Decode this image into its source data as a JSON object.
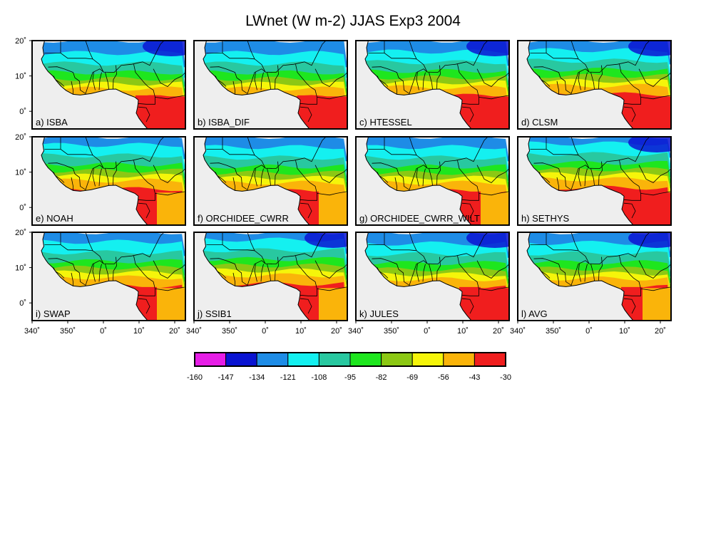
{
  "title": "LWnet (W m-2) JJAS Exp3 2004",
  "panels": [
    {
      "label": "a) ISBA"
    },
    {
      "label": "b) ISBA_DIF"
    },
    {
      "label": "c) HTESSEL"
    },
    {
      "label": "d) CLSM"
    },
    {
      "label": "e) NOAH"
    },
    {
      "label": "f) ORCHIDEE_CWRR"
    },
    {
      "label": "g) ORCHIDEE_CWRR_WILT"
    },
    {
      "label": "h) SETHYS"
    },
    {
      "label": "i) SWAP"
    },
    {
      "label": "j) SSIB1"
    },
    {
      "label": "k) JULES"
    },
    {
      "label": "l) AVG"
    }
  ],
  "lat_ticks": [
    "20˚",
    "10˚",
    "0˚"
  ],
  "lon_ticks": [
    "340˚",
    "350˚",
    "0˚",
    "10˚",
    "20˚"
  ],
  "colorbar": {
    "labels": [
      "-160",
      "-147",
      "-134",
      "-121",
      "-108",
      "-95",
      "-82",
      "-69",
      "-56",
      "-43",
      "-30"
    ],
    "colors": [
      "#e61ee6",
      "#0a14d2",
      "#1e8ce6",
      "#14f0f0",
      "#28c8a0",
      "#1ee61e",
      "#8cc814",
      "#f5f50a",
      "#fab40a",
      "#f01e1e"
    ]
  },
  "colors": {
    "ocean": "#eeeeee",
    "border": "#000000",
    "missing": "#ffffff"
  }
}
